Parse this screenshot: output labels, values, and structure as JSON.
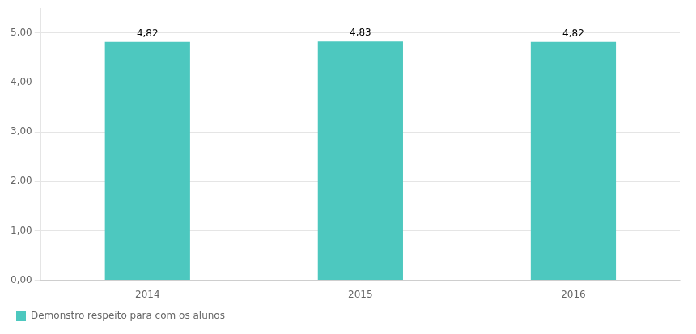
{
  "chart_data": {
    "type": "bar",
    "categories": [
      "2014",
      "2015",
      "2016"
    ],
    "series": [
      {
        "name": "Demonstro respeito para com os alunos",
        "color": "#4DC8BF",
        "values": [
          4.82,
          4.83,
          4.82
        ],
        "value_labels": [
          "4,82",
          "4,83",
          "4,82"
        ]
      }
    ],
    "ylim": [
      0,
      5.5
    ],
    "yticks": [
      {
        "value": 0,
        "label": "0,00"
      },
      {
        "value": 1,
        "label": "1,00"
      },
      {
        "value": 2,
        "label": "2,00"
      },
      {
        "value": 3,
        "label": "3,00"
      },
      {
        "value": 4,
        "label": "4,00"
      },
      {
        "value": 5,
        "label": "5,00"
      }
    ],
    "grid": true,
    "legend": "bottom",
    "data_labels": true
  }
}
